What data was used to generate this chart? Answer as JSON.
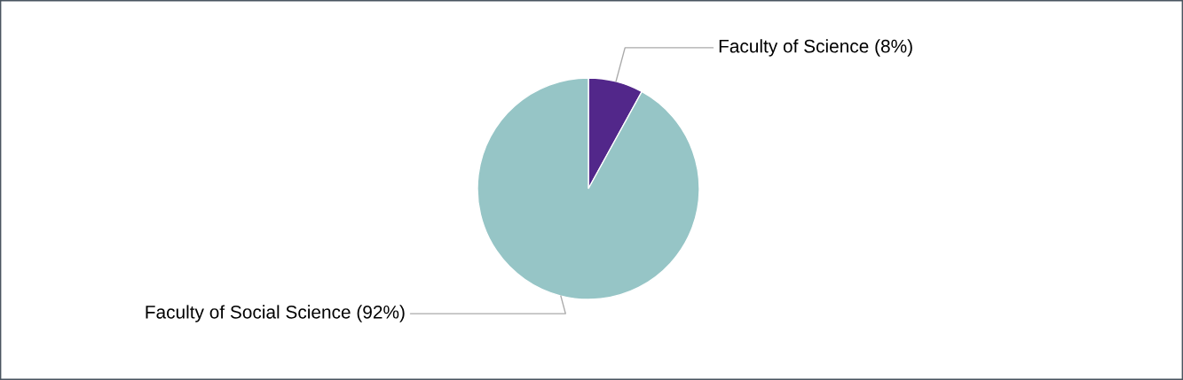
{
  "chart_data": {
    "type": "pie",
    "categories": [
      "Faculty of Science (8%)",
      "Faculty of Social Science (92%)"
    ],
    "values": [
      8,
      92
    ],
    "colors": [
      "#52278a",
      "#96c5c6"
    ]
  }
}
